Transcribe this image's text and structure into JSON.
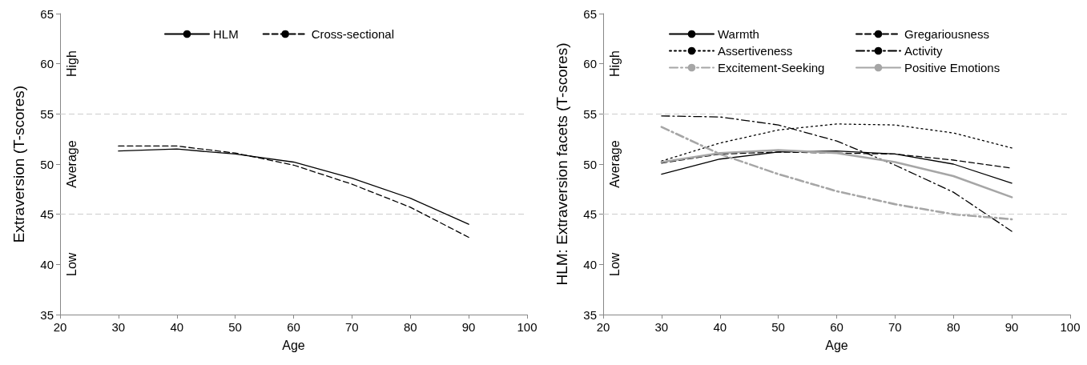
{
  "chart_data": [
    {
      "type": "line",
      "xlabel": "Age",
      "ylabel": "Extraversion (T-scores)",
      "x": [
        30,
        40,
        50,
        60,
        70,
        80,
        90
      ],
      "xlim": [
        20,
        100
      ],
      "xticks": [
        20,
        30,
        40,
        50,
        60,
        70,
        80,
        90,
        100
      ],
      "ylim": [
        35,
        65
      ],
      "yticks": [
        35,
        40,
        45,
        50,
        55,
        60,
        65
      ],
      "grid": false,
      "legend": "top",
      "marker": "none",
      "series": [
        {
          "name": "HLM",
          "color": "#000000",
          "line_style": "solid",
          "values": [
            51.3,
            51.5,
            51.0,
            50.2,
            48.6,
            46.6,
            44.0
          ]
        },
        {
          "name": "Cross-sectional",
          "color": "#000000",
          "line_style": "dashed",
          "values": [
            51.8,
            51.8,
            51.1,
            49.9,
            48.0,
            45.7,
            42.7
          ]
        }
      ],
      "ref_lines": [
        {
          "axis": "y",
          "value": 55,
          "color": "#cccccc",
          "line_style": "dashed"
        },
        {
          "axis": "y",
          "value": 45,
          "color": "#cccccc",
          "line_style": "dashed"
        }
      ],
      "annotations": [
        "High",
        "Average",
        "Low"
      ]
    },
    {
      "type": "line",
      "xlabel": "Age",
      "ylabel": "HLM: Extraversion facets (T-scores)",
      "x": [
        30,
        40,
        50,
        60,
        70,
        80,
        90
      ],
      "xlim": [
        20,
        100
      ],
      "xticks": [
        20,
        30,
        40,
        50,
        60,
        70,
        80,
        90,
        100
      ],
      "ylim": [
        35,
        65
      ],
      "yticks": [
        35,
        40,
        45,
        50,
        55,
        60,
        65
      ],
      "grid": false,
      "legend": "top",
      "marker": "none",
      "series": [
        {
          "name": "Warmth",
          "color": "#000000",
          "line_style": "solid",
          "values": [
            49.0,
            50.5,
            51.2,
            51.3,
            51.0,
            50.0,
            48.1
          ]
        },
        {
          "name": "Gregariousness",
          "color": "#000000",
          "line_style": "dashed",
          "values": [
            50.1,
            51.0,
            51.2,
            51.1,
            51.0,
            50.4,
            49.6
          ]
        },
        {
          "name": "Assertiveness",
          "color": "#000000",
          "line_style": "dotted",
          "values": [
            50.3,
            52.1,
            53.4,
            54.0,
            53.9,
            53.1,
            51.6
          ]
        },
        {
          "name": "Activity",
          "color": "#000000",
          "line_style": "dashdot",
          "values": [
            54.8,
            54.7,
            53.9,
            52.3,
            49.9,
            47.2,
            43.3
          ]
        },
        {
          "name": "Excitement-Seeking",
          "color": "#a6a6a6",
          "line_style": "dashdot",
          "values": [
            53.7,
            51.0,
            49.0,
            47.3,
            46.0,
            45.0,
            44.5
          ]
        },
        {
          "name": "Positive Emotions",
          "color": "#a6a6a6",
          "line_style": "solid",
          "values": [
            50.2,
            51.1,
            51.4,
            51.1,
            50.2,
            48.8,
            46.7
          ]
        }
      ],
      "ref_lines": [
        {
          "axis": "y",
          "value": 55,
          "color": "#cccccc",
          "line_style": "dashed"
        },
        {
          "axis": "y",
          "value": 45,
          "color": "#cccccc",
          "line_style": "dashed"
        }
      ],
      "annotations": [
        "High",
        "Average",
        "Low"
      ]
    }
  ]
}
